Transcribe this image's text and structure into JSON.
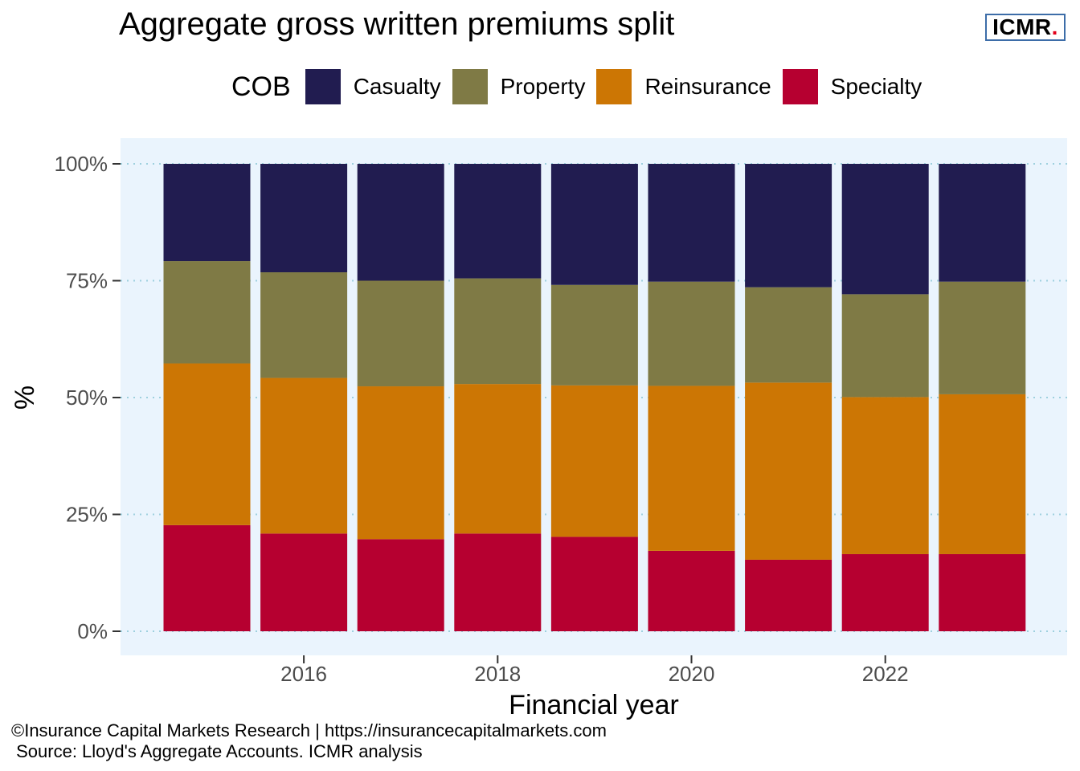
{
  "title": "Aggregate gross written premiums split",
  "logo": {
    "text": "ICMR",
    "dot": ".",
    "dot_color": "#e2001a",
    "border_color": "#3d6da8"
  },
  "legend": {
    "title": "COB",
    "items": [
      {
        "label": "Casualty",
        "color": "#211c50"
      },
      {
        "label": "Property",
        "color": "#7f7a45"
      },
      {
        "label": "Reinsurance",
        "color": "#cc7604"
      },
      {
        "label": "Specialty",
        "color": "#b60030"
      }
    ]
  },
  "chart_data": {
    "type": "bar",
    "stacked": true,
    "x": [
      2015,
      2016,
      2017,
      2018,
      2019,
      2020,
      2021,
      2022,
      2023
    ],
    "x_tick_labels": [
      "2016",
      "2018",
      "2020",
      "2022"
    ],
    "x_ticks": [
      2016,
      2018,
      2020,
      2022
    ],
    "y_tick_labels": [
      "0%",
      "25%",
      "50%",
      "75%",
      "100%"
    ],
    "y_ticks": [
      0,
      25,
      50,
      75,
      100
    ],
    "ylim": [
      0,
      100
    ],
    "xlabel": "Financial year",
    "ylabel": "%",
    "panel_background": "#eaf4fd",
    "grid_color": "#9ed0de",
    "series": [
      {
        "name": "Specialty",
        "color": "#b60030",
        "values": [
          22.7,
          20.9,
          19.7,
          20.9,
          20.2,
          17.2,
          15.3,
          16.5,
          16.5
        ]
      },
      {
        "name": "Reinsurance",
        "color": "#cc7604",
        "values": [
          34.6,
          33.3,
          32.7,
          32.0,
          32.4,
          35.3,
          37.9,
          33.6,
          34.2
        ]
      },
      {
        "name": "Property",
        "color": "#7f7a45",
        "values": [
          21.9,
          22.6,
          22.6,
          22.6,
          21.5,
          22.3,
          20.4,
          22.0,
          24.1
        ]
      },
      {
        "name": "Casualty",
        "color": "#211c50",
        "values": [
          20.8,
          23.2,
          25.0,
          24.5,
          25.9,
          25.2,
          26.4,
          27.9,
          25.2
        ]
      }
    ]
  },
  "footer": {
    "line1": "©Insurance Capital Markets Research | https://insurancecapitalmarkets.com",
    "line2": " Source: Lloyd's Aggregate Accounts. ICMR analysis"
  }
}
